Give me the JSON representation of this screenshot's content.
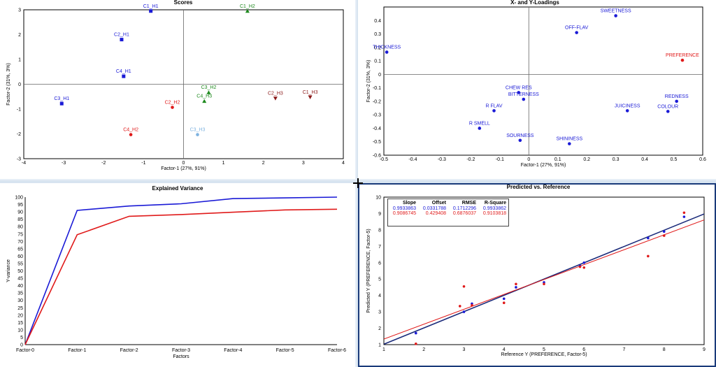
{
  "colors": {
    "blue": "#1a1ad6",
    "green": "#1e8a1e",
    "red": "#e01a1a",
    "darkred": "#8b1a1a",
    "lightblue": "#7fb3e0",
    "navy": "#1a2a7a"
  },
  "chart_data": [
    {
      "type": "scatter",
      "title": "Scores",
      "xlabel": "Factor-1 (27%, 91%)",
      "ylabel": "Factor-2 (31%, 3%)",
      "xlim": [
        -4,
        4
      ],
      "ylim": [
        -3,
        3
      ],
      "xticks": [
        "-4",
        "-3",
        "-2",
        "-1",
        "0",
        "1",
        "2",
        "3",
        "4"
      ],
      "yticks": [
        "3",
        "2",
        "1",
        "0",
        "-1",
        "-2",
        "-3"
      ],
      "points": [
        {
          "label": "C1_H1",
          "x": -0.82,
          "y": 2.95,
          "color": "blue",
          "marker": "square"
        },
        {
          "label": "C2_H1",
          "x": -1.55,
          "y": 1.8,
          "color": "blue",
          "marker": "square"
        },
        {
          "label": "C4_H1",
          "x": -1.5,
          "y": 0.32,
          "color": "blue",
          "marker": "square"
        },
        {
          "label": "C3_H1",
          "x": -3.05,
          "y": -0.78,
          "color": "blue",
          "marker": "square"
        },
        {
          "label": "C1_H2",
          "x": 1.6,
          "y": 2.95,
          "color": "green",
          "marker": "triangle"
        },
        {
          "label": "C3_H2",
          "x": 0.63,
          "y": -0.33,
          "color": "green",
          "marker": "triangle"
        },
        {
          "label": "C4_H3",
          "x": 0.52,
          "y": -0.68,
          "color": "green",
          "marker": "triangle"
        },
        {
          "label": "C2_H2",
          "x": -0.28,
          "y": -0.93,
          "color": "red",
          "marker": "circle"
        },
        {
          "label": "C4_H2",
          "x": -1.32,
          "y": -2.03,
          "color": "red",
          "marker": "circle"
        },
        {
          "label": "C3_H3",
          "x": 0.35,
          "y": -2.03,
          "color": "lightblue",
          "marker": "circle"
        },
        {
          "label": "C2_H3",
          "x": 2.3,
          "y": -0.57,
          "color": "darkred",
          "marker": "tri-down"
        },
        {
          "label": "C1_H3",
          "x": 3.17,
          "y": -0.52,
          "color": "darkred",
          "marker": "tri-down"
        }
      ]
    },
    {
      "type": "scatter",
      "title": "X- and Y-Loadings",
      "xlabel": "Factor-1 (27%, 91%)",
      "ylabel": "Factor-2 (31%, 3%)",
      "xlim": [
        -0.5,
        0.6
      ],
      "ylim": [
        -0.6,
        0.5
      ],
      "xticks": [
        "-0.5",
        "-0.4",
        "-0.3",
        "-0.2",
        "-0.1",
        "0",
        "0.1",
        "0.2",
        "0.3",
        "0.4",
        "0.5",
        "0.6"
      ],
      "yticks": [
        "0.4",
        "0.3",
        "0.2",
        "0.1",
        "0",
        "-0.1",
        "-0.2",
        "-0.3",
        "-0.4",
        "-0.5",
        "-0.6"
      ],
      "points": [
        {
          "label": "SWEETNESS",
          "x": 0.3,
          "y": 0.435,
          "color": "blue"
        },
        {
          "label": "OFF-FLAV",
          "x": 0.165,
          "y": 0.31,
          "color": "blue"
        },
        {
          "label": "THICKNESS",
          "x": -0.49,
          "y": 0.165,
          "color": "blue"
        },
        {
          "label": "PREFERENCE",
          "x": 0.53,
          "y": 0.105,
          "color": "red"
        },
        {
          "label": "CHEW RES",
          "x": -0.035,
          "y": -0.135,
          "color": "blue"
        },
        {
          "label": "BITTERNESS",
          "x": -0.018,
          "y": -0.185,
          "color": "blue"
        },
        {
          "label": "R FLAV",
          "x": -0.12,
          "y": -0.27,
          "color": "blue"
        },
        {
          "label": "R SMELL",
          "x": -0.17,
          "y": -0.4,
          "color": "blue"
        },
        {
          "label": "SOURNESS",
          "x": -0.03,
          "y": -0.49,
          "color": "blue"
        },
        {
          "label": "SHININESS",
          "x": 0.14,
          "y": -0.515,
          "color": "blue"
        },
        {
          "label": "JUICINESS",
          "x": 0.34,
          "y": -0.27,
          "color": "blue"
        },
        {
          "label": "REDNESS",
          "x": 0.51,
          "y": -0.2,
          "color": "blue"
        },
        {
          "label": "COLOUR",
          "x": 0.48,
          "y": -0.275,
          "color": "blue"
        }
      ]
    },
    {
      "type": "line",
      "title": "Explained Variance",
      "xlabel": "Factors",
      "ylabel": "Y-variance",
      "categories": [
        "Factor-0",
        "Factor-1",
        "Factor-2",
        "Factor-3",
        "Factor-4",
        "Factor-5",
        "Factor-6"
      ],
      "ylim": [
        0,
        100
      ],
      "yticks": [
        "100",
        "95",
        "90",
        "85",
        "80",
        "75",
        "70",
        "65",
        "60",
        "55",
        "50",
        "45",
        "40",
        "35",
        "30",
        "25",
        "20",
        "15",
        "10",
        "5",
        "0"
      ],
      "series": [
        {
          "color": "blue",
          "values": [
            0,
            91,
            94,
            95.5,
            99,
            99.5,
            100
          ]
        },
        {
          "color": "red",
          "values": [
            0,
            74.5,
            87,
            88.2,
            89.8,
            91.3,
            91.8
          ]
        }
      ]
    },
    {
      "type": "scatter",
      "title": "Predicted vs. Reference",
      "xlabel": "Reference Y (PREFERENCE, Factor-5)",
      "ylabel": "Predicted Y (PREFERENCE, Factor-5)",
      "xlim": [
        1,
        9
      ],
      "ylim": [
        1,
        10
      ],
      "xticks": [
        "1",
        "2",
        "3",
        "4",
        "5",
        "6",
        "7",
        "8",
        "9"
      ],
      "yticks": [
        "10",
        "9",
        "8",
        "7",
        "6",
        "5",
        "4",
        "3",
        "2",
        "1"
      ],
      "stats_headers": [
        "Slope",
        "Offset",
        "RMSE",
        "R-Square"
      ],
      "stats_rows": [
        [
          "0.9933863",
          "0.0331788",
          "0.1712296",
          "0.9933862"
        ],
        [
          "0.9086745",
          "0.429408",
          "0.6876037",
          "0.9103818"
        ]
      ],
      "series": [
        {
          "color": "blue",
          "slope": 0.9933863,
          "offset": 0.0331788,
          "points": [
            [
              1.8,
              1.7
            ],
            [
              3.0,
              3.0
            ],
            [
              3.2,
              3.5
            ],
            [
              4.0,
              3.8
            ],
            [
              4.3,
              4.5
            ],
            [
              5.0,
              4.8
            ],
            [
              5.9,
              5.8
            ],
            [
              6.0,
              6.0
            ],
            [
              7.6,
              7.5
            ],
            [
              8.0,
              7.9
            ],
            [
              8.5,
              8.8
            ]
          ]
        },
        {
          "color": "red",
          "slope": 0.9086745,
          "offset": 0.429408,
          "points": [
            [
              1.8,
              1.05
            ],
            [
              2.9,
              3.35
            ],
            [
              3.0,
              4.55
            ],
            [
              3.2,
              3.4
            ],
            [
              4.0,
              3.55
            ],
            [
              4.3,
              4.7
            ],
            [
              5.0,
              4.7
            ],
            [
              5.9,
              5.75
            ],
            [
              6.0,
              5.7
            ],
            [
              7.6,
              6.4
            ],
            [
              8.0,
              7.65
            ],
            [
              8.5,
              9.05
            ]
          ]
        }
      ]
    }
  ]
}
